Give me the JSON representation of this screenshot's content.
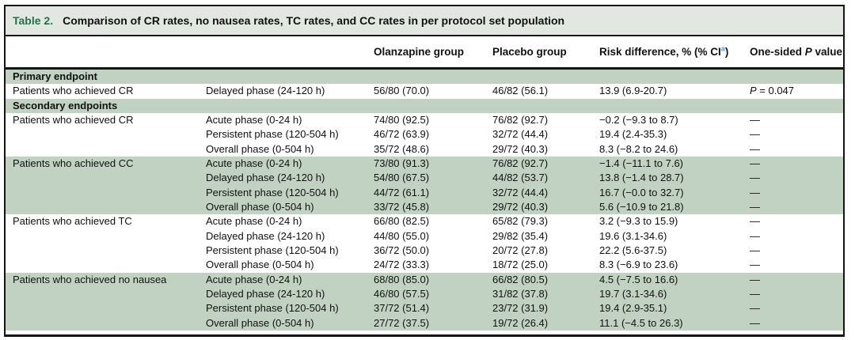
{
  "colors": {
    "accent_green": "#26704a",
    "band_green": "#c1d2c3",
    "caption_bg": "#e2e8e1",
    "footnote_blue": "#41a0d2",
    "border_black": "#141414",
    "text_black": "#111111"
  },
  "table": {
    "label": "Table 2.",
    "title": "Comparison of CR rates, no nausea rates, TC rates, and CC rates in per protocol set population",
    "header": {
      "endpoint": "",
      "phase": "",
      "olanzapine": "Olanzapine group",
      "placebo": "Placebo group",
      "risk_main": "Risk difference, % (% CI",
      "risk_sup": "a",
      "risk_close": ")",
      "p_pre": "One-sided ",
      "p_italic": "P",
      "p_post": " value"
    },
    "rows": [
      {
        "type": "section",
        "label": "Primary endpoint",
        "shaded": true
      },
      {
        "type": "data",
        "shaded": false,
        "endpoint": "Patients who achieved CR",
        "phase": "Delayed phase (24-120 h)",
        "olanzapine": "56/80 (70.0)",
        "placebo": "46/82 (56.1)",
        "risk_difference": "13.9 (6.9-20.7)",
        "p": "P = 0.047"
      },
      {
        "type": "section",
        "label": "Secondary endpoints",
        "shaded": true
      },
      {
        "type": "data",
        "shaded": false,
        "endpoint": "Patients who achieved CR",
        "phase": "Acute phase (0-24 h)",
        "olanzapine": "74/80 (92.5)",
        "placebo": "76/82 (92.7)",
        "risk_difference": "−0.2 (−9.3 to 8.7)",
        "p": "—"
      },
      {
        "type": "data",
        "shaded": false,
        "endpoint": "",
        "phase": "Persistent phase (120-504 h)",
        "olanzapine": "46/72 (63.9)",
        "placebo": "32/72 (44.4)",
        "risk_difference": "19.4 (2.4-35.3)",
        "p": "—"
      },
      {
        "type": "data",
        "shaded": false,
        "endpoint": "",
        "phase": "Overall phase (0-504 h)",
        "olanzapine": "35/72 (48.6)",
        "placebo": "29/72 (40.3)",
        "risk_difference": "8.3 (−8.2 to 24.6)",
        "p": "—"
      },
      {
        "type": "data",
        "shaded": true,
        "endpoint": "Patients who achieved CC",
        "phase": "Acute phase (0-24 h)",
        "olanzapine": "73/80 (91.3)",
        "placebo": "76/82 (92.7)",
        "risk_difference": "−1.4 (−11.1 to 7.6)",
        "p": "—"
      },
      {
        "type": "data",
        "shaded": true,
        "endpoint": "",
        "phase": "Delayed phase (24-120 h)",
        "olanzapine": "54/80 (67.5)",
        "placebo": "44/82 (53.7)",
        "risk_difference": "13.8 (−1.4 to 28.7)",
        "p": "—"
      },
      {
        "type": "data",
        "shaded": true,
        "endpoint": "",
        "phase": "Persistent phase (120-504 h)",
        "olanzapine": "44/72 (61.1)",
        "placebo": "32/72 (44.4)",
        "risk_difference": "16.7 (−0.0 to 32.7)",
        "p": "—"
      },
      {
        "type": "data",
        "shaded": true,
        "endpoint": "",
        "phase": "Overall phase (0-504 h)",
        "olanzapine": "33/72 (45.8)",
        "placebo": "29/72 (40.3)",
        "risk_difference": "5.6 (−10.9 to 21.8)",
        "p": "—"
      },
      {
        "type": "data",
        "shaded": false,
        "endpoint": "Patients who achieved TC",
        "phase": "Acute phase (0-24 h)",
        "olanzapine": "66/80 (82.5)",
        "placebo": "65/82 (79.3)",
        "risk_difference": "3.2 (−9.3 to 15.9)",
        "p": "—"
      },
      {
        "type": "data",
        "shaded": false,
        "endpoint": "",
        "phase": "Delayed phase (24-120 h)",
        "olanzapine": "44/80 (55.0)",
        "placebo": "29/82 (35.4)",
        "risk_difference": "19.6 (3.1-34.6)",
        "p": "—"
      },
      {
        "type": "data",
        "shaded": false,
        "endpoint": "",
        "phase": "Persistent phase (120-504 h)",
        "olanzapine": "36/72 (50.0)",
        "placebo": "20/72 (27.8)",
        "risk_difference": "22.2 (5.6-37.5)",
        "p": "—"
      },
      {
        "type": "data",
        "shaded": false,
        "endpoint": "",
        "phase": "Overall phase (0-504 h)",
        "olanzapine": "24/72 (33.3)",
        "placebo": "18/72 (25.0)",
        "risk_difference": "8.3 (−6.9 to 23.6)",
        "p": "—"
      },
      {
        "type": "data",
        "shaded": true,
        "endpoint": "Patients who achieved no nausea",
        "phase": "Acute phase (0-24 h)",
        "olanzapine": "68/80 (85.0)",
        "placebo": "66/82 (80.5)",
        "risk_difference": "4.5 (−7.5 to 16.6)",
        "p": "—"
      },
      {
        "type": "data",
        "shaded": true,
        "endpoint": "",
        "phase": "Delayed phase (24-120 h)",
        "olanzapine": "46/80 (57.5)",
        "placebo": "31/82 (37.8)",
        "risk_difference": "19.7 (3.1-34.6)",
        "p": "—"
      },
      {
        "type": "data",
        "shaded": true,
        "endpoint": "",
        "phase": "Persistent phase (120-504 h)",
        "olanzapine": "37/72 (51.4)",
        "placebo": "23/72 (31.9)",
        "risk_difference": "19.4 (2.9-35.1)",
        "p": "—"
      },
      {
        "type": "data",
        "shaded": true,
        "endpoint": "",
        "phase": "Overall phase (0-504 h)",
        "olanzapine": "27/72 (37.5)",
        "placebo": "19/72 (26.4)",
        "risk_difference": "11.1 (−4.5 to 26.3)",
        "p": "—"
      }
    ]
  }
}
